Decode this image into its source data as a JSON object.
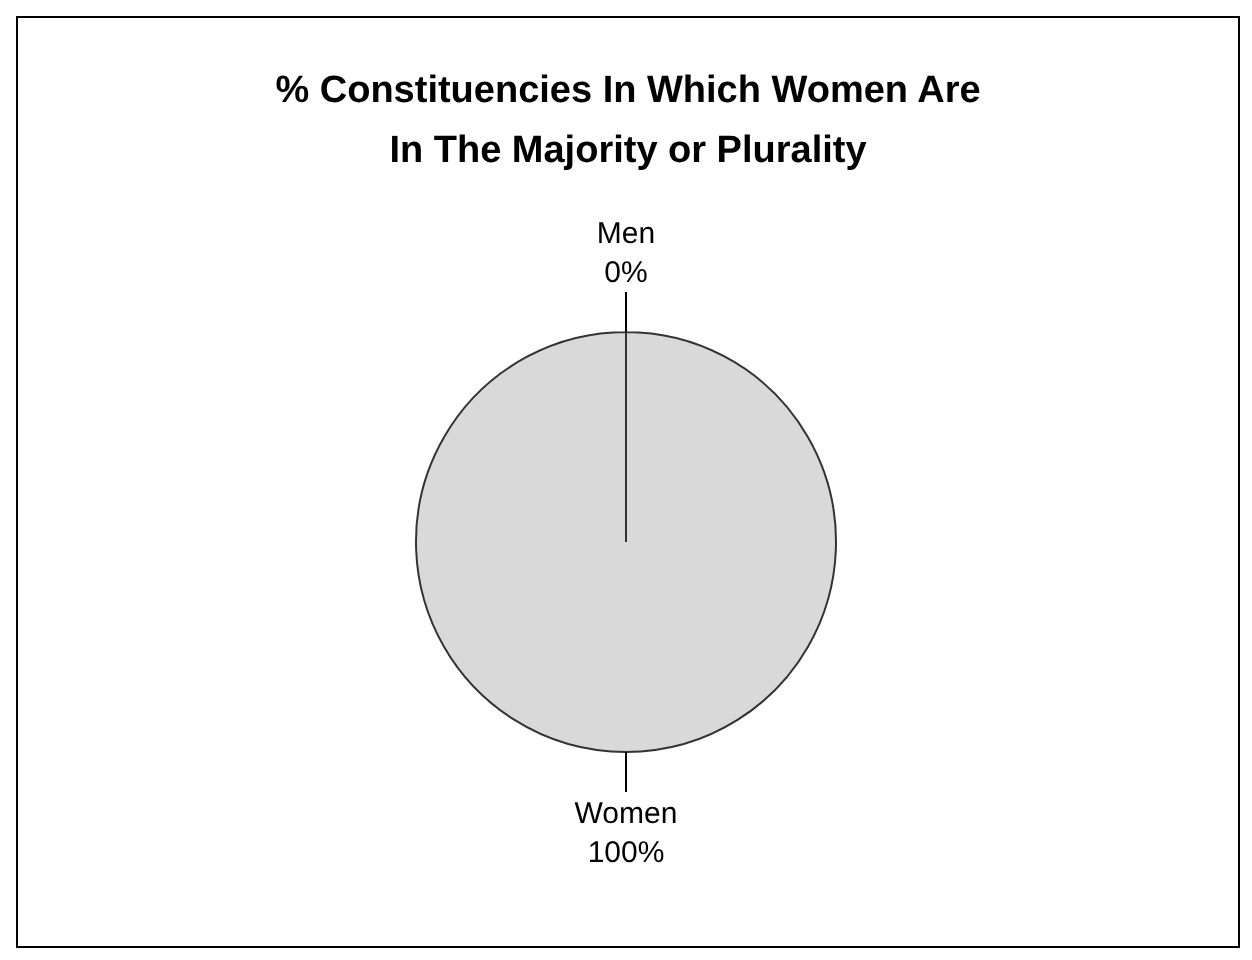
{
  "chart_data": {
    "type": "pie",
    "title": "% Constituencies In Which Women Are In The Majority or Plurality",
    "categories": [
      "Men",
      "Women"
    ],
    "values": [
      0,
      100
    ],
    "value_labels": [
      "0%",
      "100%"
    ],
    "colors": [
      "#d9d9d9",
      "#d9d9d9"
    ],
    "legend": false
  }
}
